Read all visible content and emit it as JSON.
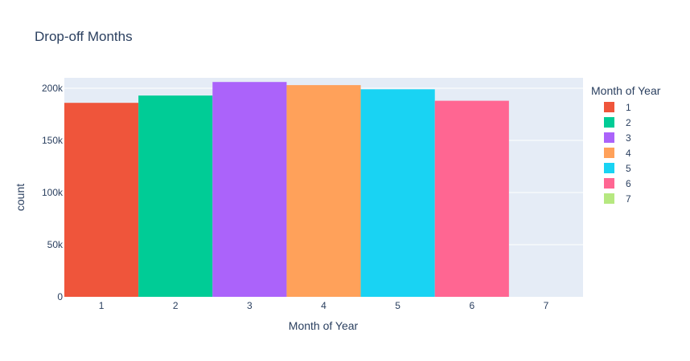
{
  "chart_data": {
    "type": "bar",
    "title": "Drop-off Months",
    "xlabel": "Month  of Year",
    "ylabel": "count",
    "categories": [
      "1",
      "2",
      "3",
      "4",
      "5",
      "6",
      "7"
    ],
    "values": [
      186000,
      193000,
      206000,
      203000,
      199000,
      188000,
      0
    ],
    "colors": [
      "#EF553B",
      "#00CC96",
      "#AB63FA",
      "#FFA15A",
      "#19D3F3",
      "#FF6692",
      "#B6E880"
    ],
    "ylim": [
      0,
      210000
    ],
    "yticks": [
      0,
      50000,
      100000,
      150000,
      200000
    ],
    "ytick_labels": [
      "0",
      "50k",
      "100k",
      "150k",
      "200k"
    ],
    "grid": true,
    "plot_bgcolor": "#E5ECF6",
    "legend": {
      "title": "Month  of Year",
      "placement": "right",
      "entries": [
        "1",
        "2",
        "3",
        "4",
        "5",
        "6",
        "7"
      ]
    }
  }
}
